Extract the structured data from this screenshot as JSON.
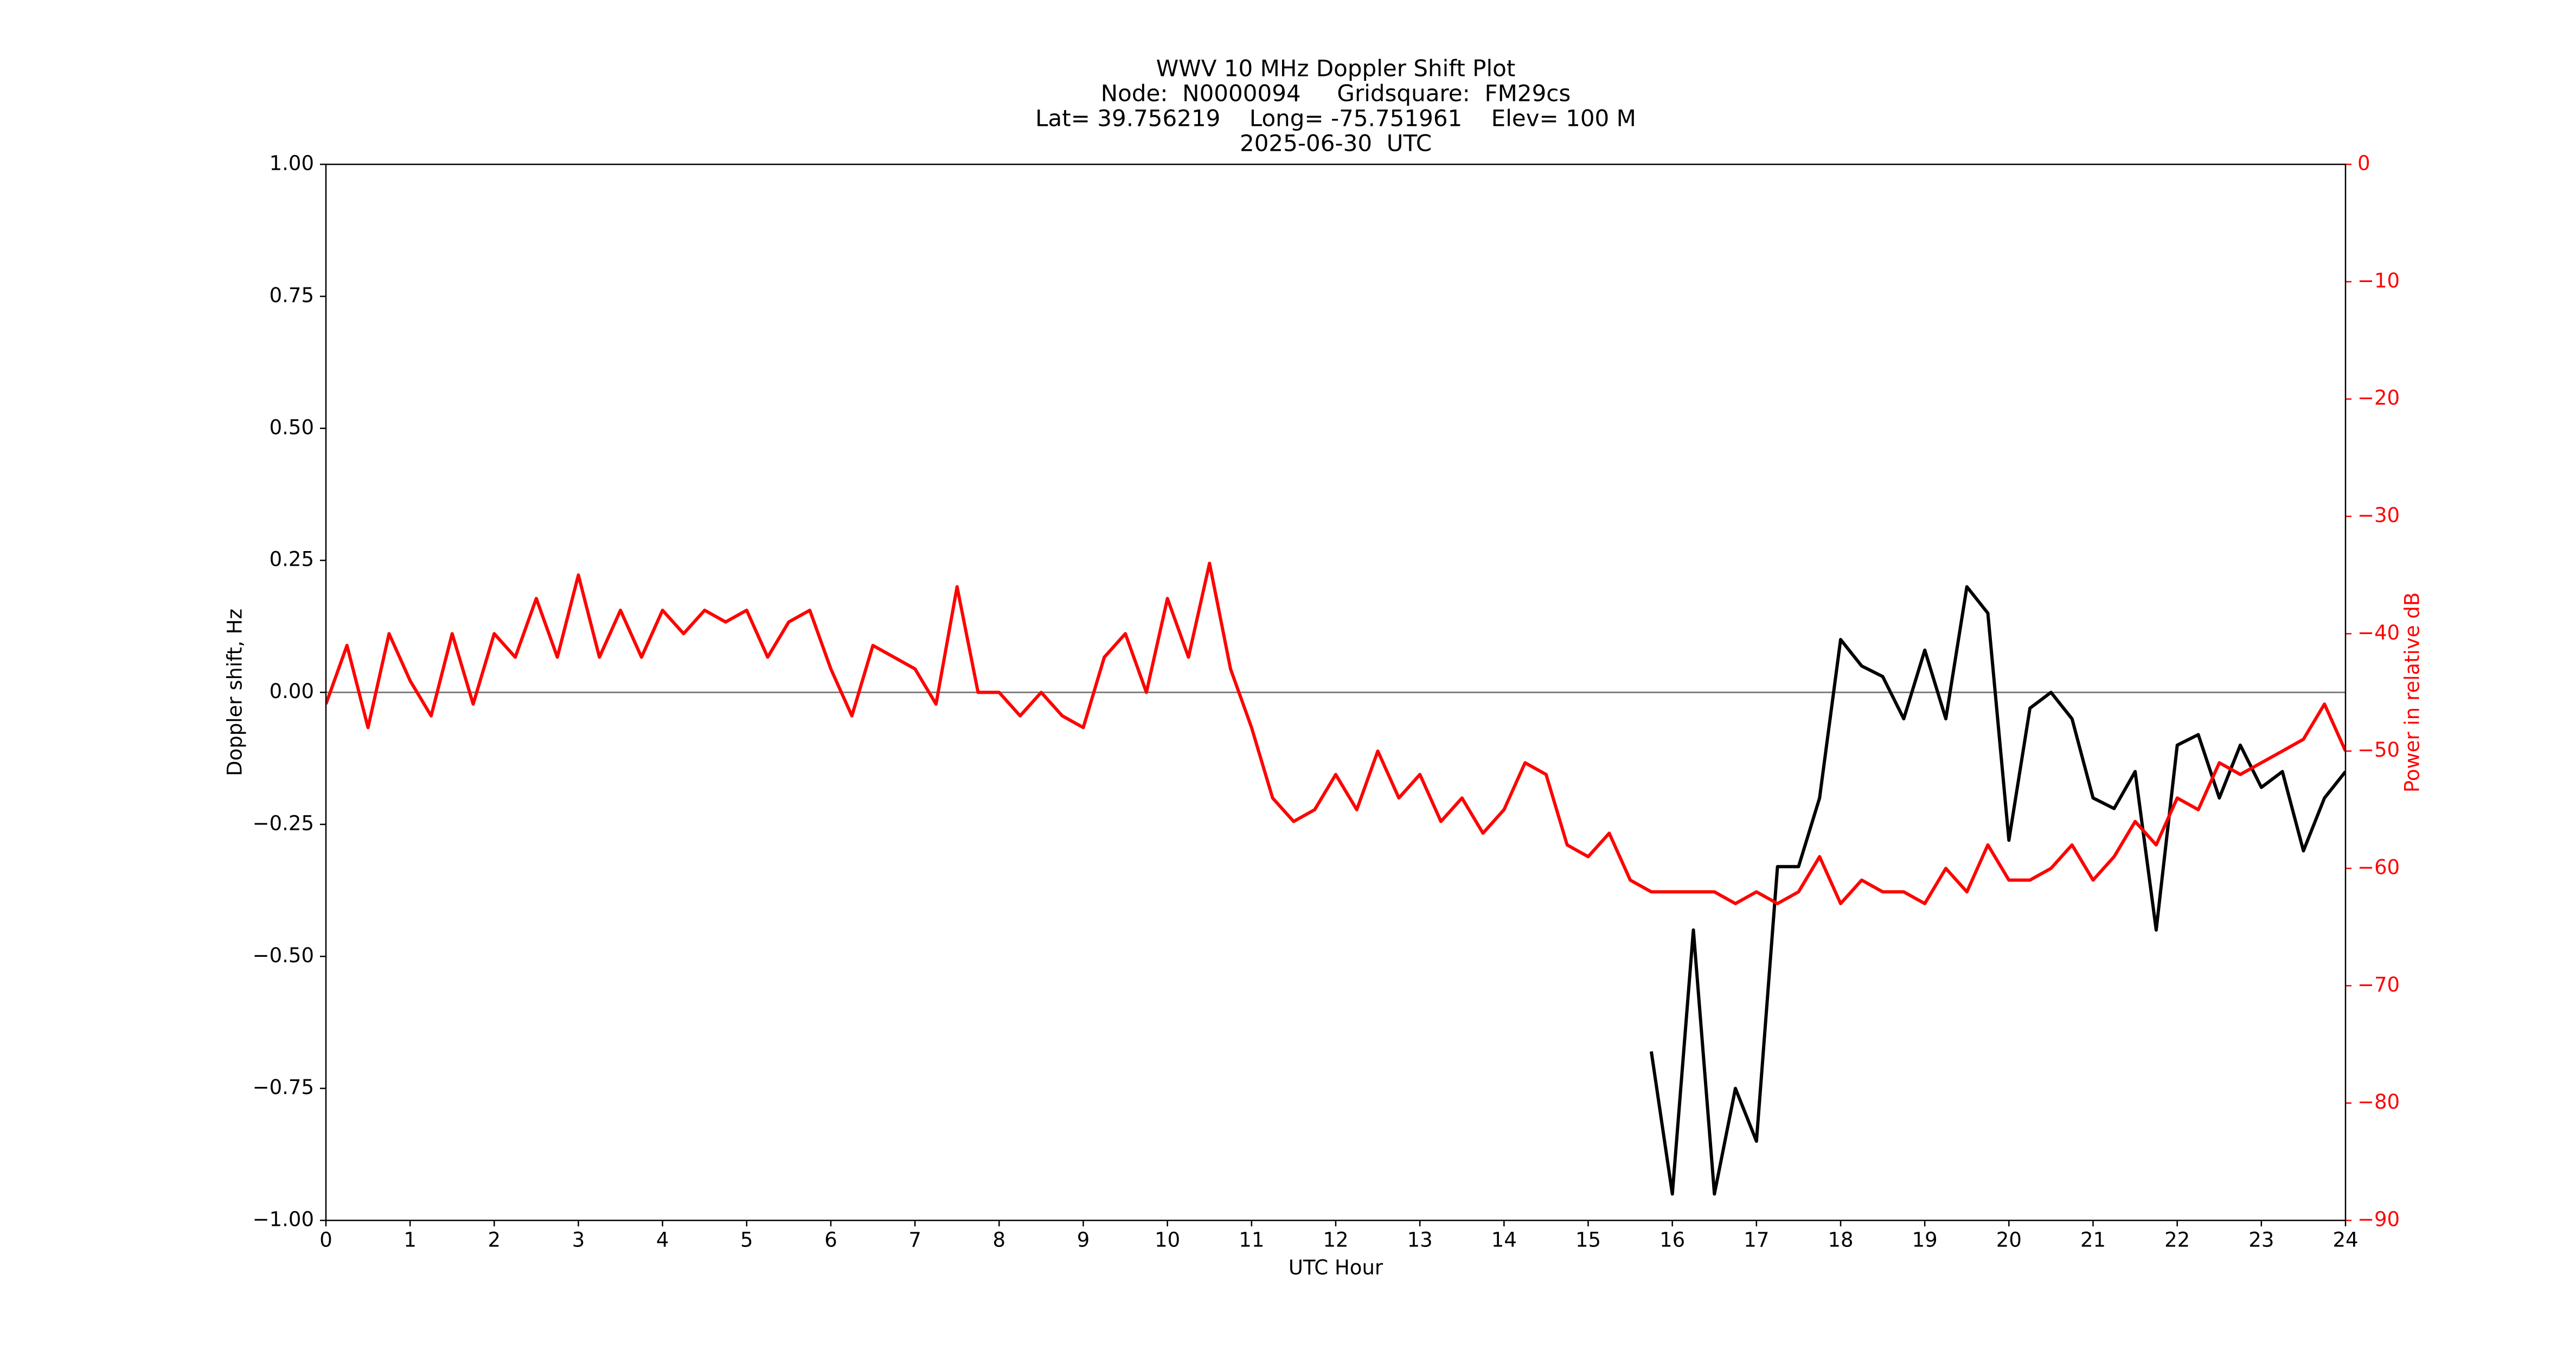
{
  "chart_data": {
    "type": "line",
    "title": [
      "WWV 10 MHz Doppler Shift Plot",
      "Node:  N0000094     Gridsquare:  FM29cs",
      "Lat= 39.756219    Long= -75.751961    Elev= 100 M",
      "2025-06-30  UTC"
    ],
    "xlabel": "UTC Hour",
    "ylabel": "Doppler shift, Hz",
    "y2label": "Power in relative dB",
    "y2color": "#ff0000",
    "hline": 0,
    "x": [
      0,
      0.25,
      0.5,
      0.75,
      1,
      1.25,
      1.5,
      1.75,
      2,
      2.25,
      2.5,
      2.75,
      3,
      3.25,
      3.5,
      3.75,
      4,
      4.25,
      4.5,
      4.75,
      5,
      5.25,
      5.5,
      5.75,
      6,
      6.25,
      6.5,
      6.75,
      7,
      7.25,
      7.5,
      7.75,
      8,
      8.25,
      8.5,
      8.75,
      9,
      9.25,
      9.5,
      9.75,
      10,
      10.25,
      10.5,
      10.75,
      11,
      11.25,
      11.5,
      11.75,
      12,
      12.25,
      12.5,
      12.75,
      13,
      13.25,
      13.5,
      13.75,
      14,
      14.25,
      14.5,
      14.75,
      15,
      15.25,
      15.5,
      15.75,
      16,
      16.25,
      16.5,
      16.75,
      17,
      17.25,
      17.5,
      17.75,
      18,
      18.25,
      18.5,
      18.75,
      19,
      19.25,
      19.5,
      19.75,
      20,
      20.25,
      20.5,
      20.75,
      21,
      21.25,
      21.5,
      21.75,
      22,
      22.25,
      22.5,
      22.75,
      23,
      23.25,
      23.5,
      23.75,
      24
    ],
    "series": [
      {
        "name": "Doppler shift",
        "color": "#000000",
        "values": [
          null,
          null,
          null,
          null,
          null,
          null,
          null,
          null,
          null,
          null,
          null,
          null,
          null,
          null,
          null,
          null,
          null,
          null,
          null,
          null,
          null,
          null,
          null,
          null,
          null,
          null,
          null,
          null,
          null,
          null,
          null,
          null,
          null,
          null,
          null,
          null,
          null,
          null,
          null,
          null,
          null,
          null,
          null,
          null,
          null,
          null,
          null,
          null,
          null,
          null,
          null,
          null,
          null,
          null,
          null,
          null,
          null,
          null,
          null,
          null,
          null,
          null,
          null,
          -0.68,
          -0.95,
          -0.45,
          -0.95,
          -0.75,
          -0.85,
          -0.33,
          -0.33,
          -0.2,
          0.1,
          0.05,
          0.03,
          -0.05,
          0.08,
          -0.05,
          0.2,
          0.15,
          -0.28,
          -0.03,
          0,
          -0.05,
          -0.2,
          -0.22,
          -0.15,
          -0.45,
          -0.1,
          -0.08,
          -0.2,
          -0.1,
          -0.18,
          -0.15,
          -0.3,
          -0.2,
          -0.15
        ]
      },
      {
        "name": "Power",
        "color": "#ff0000",
        "axis": "y2",
        "values": [
          -46,
          -41,
          -48,
          -40,
          -44,
          -47,
          -40,
          -46,
          -40,
          -42,
          -37,
          -42,
          -35,
          -42,
          -38,
          -42,
          -38,
          -40,
          -38,
          -39,
          -38,
          -42,
          -39,
          -38,
          -43,
          -47,
          -41,
          -42,
          -43,
          -46,
          -36,
          -45,
          -45,
          -47,
          -45,
          -47,
          -48,
          -42,
          -40,
          -45,
          -37,
          -42,
          -34,
          -43,
          -48,
          -54,
          -56,
          -55,
          -52,
          -55,
          -50,
          -54,
          -52,
          -56,
          -54,
          -57,
          -55,
          -51,
          -52,
          -58,
          -59,
          -57,
          -61,
          -62,
          -62,
          -62,
          -62,
          -63,
          -62,
          -63,
          -62,
          -59,
          -63,
          -61,
          -62,
          -62,
          -63,
          -60,
          -62,
          -58,
          -61,
          -61,
          -60,
          -58,
          -61,
          -59,
          -56,
          -58,
          -54,
          -55,
          -51,
          -52,
          -51,
          -50,
          -49,
          -46,
          -50
        ]
      }
    ],
    "xlim": [
      0,
      24
    ],
    "xticks": [
      0,
      1,
      2,
      3,
      4,
      5,
      6,
      7,
      8,
      9,
      10,
      11,
      12,
      13,
      14,
      15,
      16,
      17,
      18,
      19,
      20,
      21,
      22,
      23,
      24
    ],
    "ylim": [
      -1,
      1
    ],
    "yticks": [
      {
        "value": -1,
        "label": "−1.00"
      },
      {
        "value": -0.75,
        "label": "−0.75"
      },
      {
        "value": -0.5,
        "label": "−0.50"
      },
      {
        "value": -0.25,
        "label": "−0.25"
      },
      {
        "value": 0,
        "label": "0.00"
      },
      {
        "value": 0.25,
        "label": "0.25"
      },
      {
        "value": 0.5,
        "label": "0.50"
      },
      {
        "value": 0.75,
        "label": "0.75"
      },
      {
        "value": 1,
        "label": "1.00"
      }
    ],
    "y2lim": [
      -90,
      0
    ],
    "y2ticks": [
      {
        "value": -90,
        "label": "−90"
      },
      {
        "value": -80,
        "label": "−80"
      },
      {
        "value": -70,
        "label": "−70"
      },
      {
        "value": -60,
        "label": "−60"
      },
      {
        "value": -50,
        "label": "−50"
      },
      {
        "value": -40,
        "label": "−40"
      },
      {
        "value": -30,
        "label": "−30"
      },
      {
        "value": -20,
        "label": "−20"
      },
      {
        "value": -10,
        "label": "−10"
      },
      0
    ]
  }
}
